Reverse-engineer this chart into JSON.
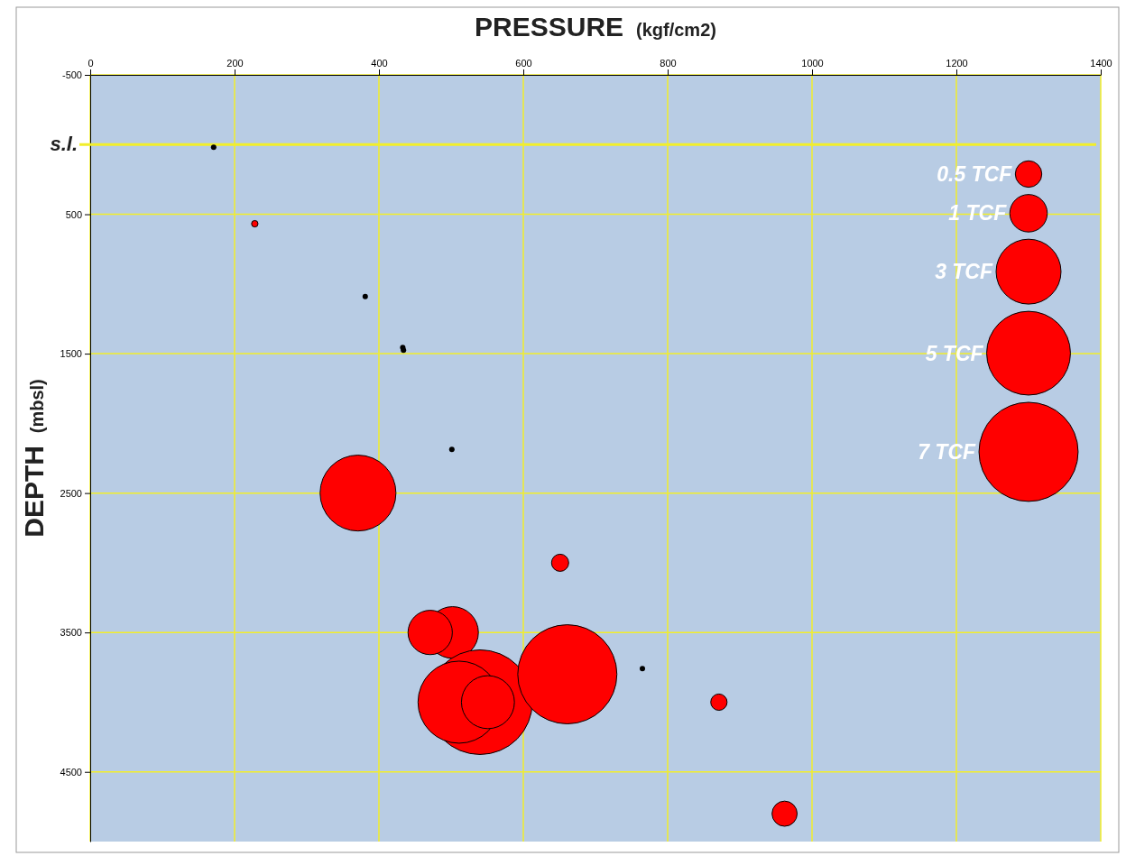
{
  "chart_data": {
    "type": "bubble",
    "xlabel": "PRESSURE  (kgf/cm2)",
    "ylabel": "DEPTH  (mbsl)",
    "xlim": [
      0,
      1400
    ],
    "xticks": [
      0,
      200,
      400,
      600,
      800,
      1000,
      1200,
      1400
    ],
    "ylim": [
      5000,
      -500
    ],
    "yticks": [
      -500,
      500,
      1500,
      2500,
      3500,
      4500
    ],
    "grid": true,
    "ref_lines": [
      {
        "axis": "y",
        "value": 0,
        "label": "s.l.",
        "color": "#f2ee2a"
      }
    ],
    "size_legend": [
      {
        "value": 0.5,
        "label": "0.5 TCF"
      },
      {
        "value": 1,
        "label": "1 TCF"
      },
      {
        "value": 3,
        "label": "3 TCF"
      },
      {
        "value": 5,
        "label": "5 TCF"
      },
      {
        "value": 7,
        "label": "7 TCF"
      }
    ],
    "marker": "circle",
    "series": [
      {
        "color": "#ff0000",
        "x": [
          228,
          371,
          651,
          502,
          471,
          540,
          511,
          551,
          661,
          871,
          962
        ],
        "values": [
          568,
          2500,
          3000,
          3500,
          3500,
          4000,
          4000,
          4000,
          3800,
          4000,
          4800
        ],
        "sizes": [
          0.03,
          4.1,
          0.21,
          1.9,
          1.4,
          7.8,
          4.8,
          2.0,
          7.0,
          0.19,
          0.45
        ]
      },
      {
        "type": "scatter",
        "color": "#000000",
        "x": [
          171,
          381,
          433,
          434,
          501,
          765
        ],
        "values": [
          20,
          1090,
          1455,
          1475,
          2187,
          3760
        ]
      }
    ]
  }
}
